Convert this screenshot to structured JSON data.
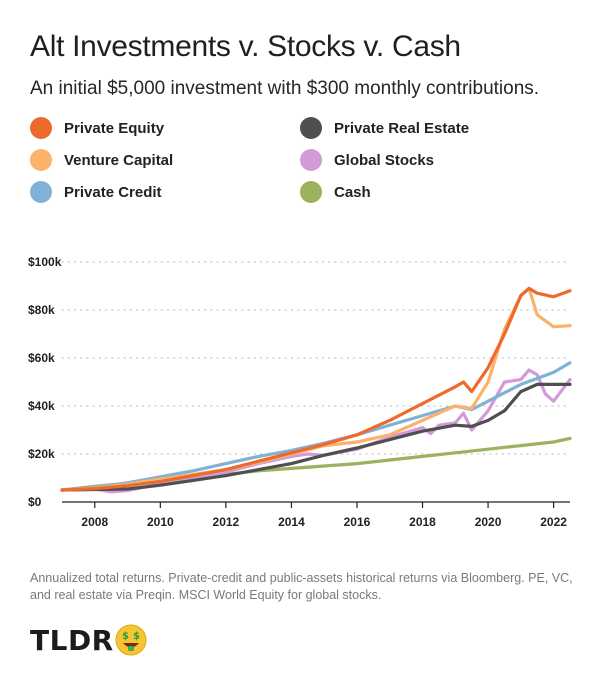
{
  "header": {
    "title": "Alt Investments v. Stocks v. Cash",
    "subtitle": "An initial $5,000 investment with $300 monthly contributions."
  },
  "footnote": "Annualized total returns. Private-credit and public-assets historical returns via Bloomberg. PE, VC, and real estate via Preqin. MSCI World Equity for global stocks.",
  "logo": {
    "text": "TLDR",
    "icon": "money-face-emoji"
  },
  "colors": {
    "private_equity": "#ee6a2c",
    "venture_capital": "#fcb26b",
    "private_credit": "#7fb2d6",
    "private_real_estate": "#4f4f4f",
    "global_stocks": "#d39ad9",
    "cash": "#9bb25e"
  },
  "chart_data": {
    "type": "line",
    "title": "Alt Investments v. Stocks v. Cash",
    "subtitle": "An initial $5,000 investment with $300 monthly contributions.",
    "xlabel": "",
    "ylabel": "",
    "xlim": [
      2007,
      2022.5
    ],
    "ylim": [
      0,
      100000
    ],
    "x_ticks": [
      2008,
      2010,
      2012,
      2014,
      2016,
      2018,
      2020,
      2022
    ],
    "x_tick_labels": [
      "2008",
      "2010",
      "2012",
      "2014",
      "2016",
      "2018",
      "2020",
      "2022"
    ],
    "y_ticks": [
      0,
      20000,
      40000,
      60000,
      80000,
      100000
    ],
    "y_tick_labels": [
      "$0",
      "$20k",
      "$40k",
      "$60k",
      "$80k",
      "$100k"
    ],
    "grid": "horizontal-dotted",
    "legend": "top",
    "series": [
      {
        "name": "Private Equity",
        "color": "#ee6a2c",
        "points": [
          [
            2007,
            5000
          ],
          [
            2008,
            5600
          ],
          [
            2009,
            6800
          ],
          [
            2010,
            8600
          ],
          [
            2011,
            11000
          ],
          [
            2012,
            13500
          ],
          [
            2013,
            17000
          ],
          [
            2014,
            20500
          ],
          [
            2015,
            24000
          ],
          [
            2016,
            28000
          ],
          [
            2017,
            34000
          ],
          [
            2018,
            41000
          ],
          [
            2019,
            48000
          ],
          [
            2019.25,
            50000
          ],
          [
            2019.5,
            46000
          ],
          [
            2020,
            56000
          ],
          [
            2020.5,
            70000
          ],
          [
            2021,
            86000
          ],
          [
            2021.25,
            89000
          ],
          [
            2021.5,
            87000
          ],
          [
            2022,
            85500
          ],
          [
            2022.5,
            88000
          ]
        ]
      },
      {
        "name": "Venture Capital",
        "color": "#fcb26b",
        "points": [
          [
            2007,
            5000
          ],
          [
            2008,
            5800
          ],
          [
            2009,
            7400
          ],
          [
            2010,
            9500
          ],
          [
            2011,
            11500
          ],
          [
            2012,
            13500
          ],
          [
            2013,
            16500
          ],
          [
            2014,
            20000
          ],
          [
            2015,
            23500
          ],
          [
            2016,
            25000
          ],
          [
            2017,
            28000
          ],
          [
            2018,
            34000
          ],
          [
            2019,
            40000
          ],
          [
            2019.5,
            39000
          ],
          [
            2020,
            50000
          ],
          [
            2020.5,
            72000
          ],
          [
            2021,
            86000
          ],
          [
            2021.25,
            89000
          ],
          [
            2021.5,
            78000
          ],
          [
            2022,
            73000
          ],
          [
            2022.5,
            73500
          ]
        ]
      },
      {
        "name": "Private Credit",
        "color": "#7fb2d6",
        "points": [
          [
            2007,
            5000
          ],
          [
            2008,
            6200
          ],
          [
            2009,
            8000
          ],
          [
            2010,
            10500
          ],
          [
            2011,
            13000
          ],
          [
            2012,
            16000
          ],
          [
            2013,
            19000
          ],
          [
            2014,
            21500
          ],
          [
            2015,
            24500
          ],
          [
            2016,
            28000
          ],
          [
            2017,
            32000
          ],
          [
            2018,
            36000
          ],
          [
            2019,
            40000
          ],
          [
            2019.5,
            38500
          ],
          [
            2020,
            42000
          ],
          [
            2021,
            49000
          ],
          [
            2022,
            54000
          ],
          [
            2022.5,
            58000
          ]
        ]
      },
      {
        "name": "Private Real Estate",
        "color": "#4f4f4f",
        "points": [
          [
            2007,
            5000
          ],
          [
            2008,
            5200
          ],
          [
            2009,
            5400
          ],
          [
            2010,
            7000
          ],
          [
            2011,
            9000
          ],
          [
            2012,
            11000
          ],
          [
            2013,
            13500
          ],
          [
            2014,
            16000
          ],
          [
            2015,
            19500
          ],
          [
            2016,
            22500
          ],
          [
            2017,
            26000
          ],
          [
            2018,
            29500
          ],
          [
            2019,
            32000
          ],
          [
            2019.5,
            31500
          ],
          [
            2020,
            34000
          ],
          [
            2020.5,
            38000
          ],
          [
            2021,
            46000
          ],
          [
            2021.5,
            49000
          ],
          [
            2022,
            49000
          ],
          [
            2022.5,
            49000
          ]
        ]
      },
      {
        "name": "Global Stocks",
        "color": "#d39ad9",
        "points": [
          [
            2007,
            5000
          ],
          [
            2008,
            5500
          ],
          [
            2008.5,
            4200
          ],
          [
            2009,
            4800
          ],
          [
            2010,
            7500
          ],
          [
            2011,
            9500
          ],
          [
            2012,
            12500
          ],
          [
            2013,
            16000
          ],
          [
            2014,
            19000
          ],
          [
            2014.5,
            20000
          ],
          [
            2015,
            19500
          ],
          [
            2016,
            22000
          ],
          [
            2017,
            27000
          ],
          [
            2018,
            31000
          ],
          [
            2018.25,
            28500
          ],
          [
            2018.5,
            32000
          ],
          [
            2019,
            33000
          ],
          [
            2019.25,
            37000
          ],
          [
            2019.5,
            30000
          ],
          [
            2020,
            38000
          ],
          [
            2020.5,
            50000
          ],
          [
            2021,
            51000
          ],
          [
            2021.25,
            55000
          ],
          [
            2021.5,
            53000
          ],
          [
            2021.75,
            45000
          ],
          [
            2022,
            42000
          ],
          [
            2022.5,
            51000
          ]
        ]
      },
      {
        "name": "Cash",
        "color": "#9bb25e",
        "points": [
          [
            2007,
            5000
          ],
          [
            2008,
            6500
          ],
          [
            2009,
            7800
          ],
          [
            2010,
            9000
          ],
          [
            2011,
            10000
          ],
          [
            2012,
            11500
          ],
          [
            2013,
            13000
          ],
          [
            2014,
            14000
          ],
          [
            2015,
            15000
          ],
          [
            2016,
            16000
          ],
          [
            2017,
            17500
          ],
          [
            2018,
            19000
          ],
          [
            2019,
            20500
          ],
          [
            2020,
            22000
          ],
          [
            2021,
            23500
          ],
          [
            2022,
            25000
          ],
          [
            2022.5,
            26500
          ]
        ]
      }
    ]
  }
}
